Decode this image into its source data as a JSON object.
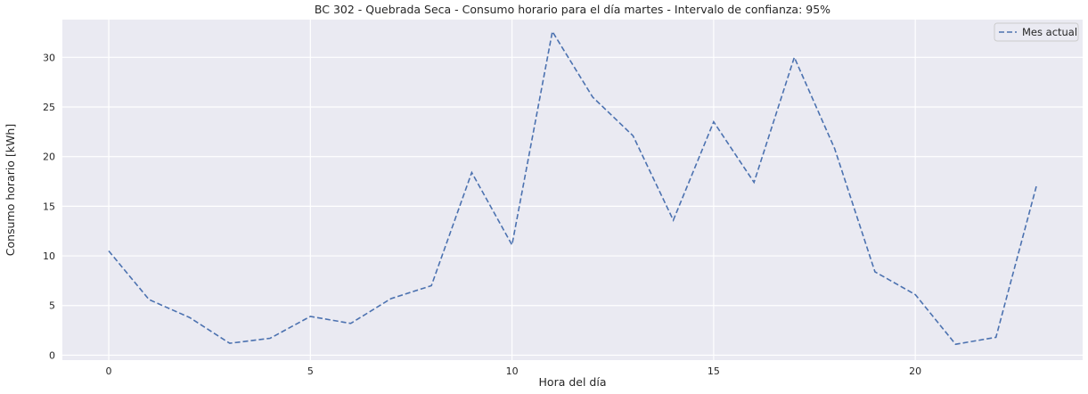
{
  "chart_data": {
    "type": "line",
    "title": "BC 302 - Quebrada Seca - Consumo horario para el día martes - Intervalo de confianza: 95%",
    "xlabel": "Hora del día",
    "ylabel": "Consumo horario [kWh]",
    "xlim": [
      -1.15,
      24.15
    ],
    "ylim": [
      -0.5,
      33.8
    ],
    "xticks": [
      0,
      5,
      10,
      15,
      20
    ],
    "yticks": [
      0,
      5,
      10,
      15,
      20,
      25,
      30
    ],
    "grid": true,
    "legend_position": "top-right",
    "series": [
      {
        "name": "Mes actual",
        "style": "dashed",
        "color": "#4c72b0",
        "x": [
          0,
          1,
          2,
          3,
          4,
          5,
          6,
          7,
          8,
          9,
          10,
          11,
          12,
          13,
          14,
          15,
          16,
          17,
          18,
          19,
          20,
          21,
          22,
          23
        ],
        "y": [
          10.5,
          5.6,
          3.8,
          1.2,
          1.7,
          3.9,
          3.2,
          5.7,
          7.0,
          18.4,
          11.1,
          32.6,
          26.0,
          22.1,
          13.6,
          23.5,
          17.4,
          30.0,
          20.8,
          8.4,
          6.1,
          1.1,
          1.8,
          17.0
        ]
      }
    ]
  }
}
